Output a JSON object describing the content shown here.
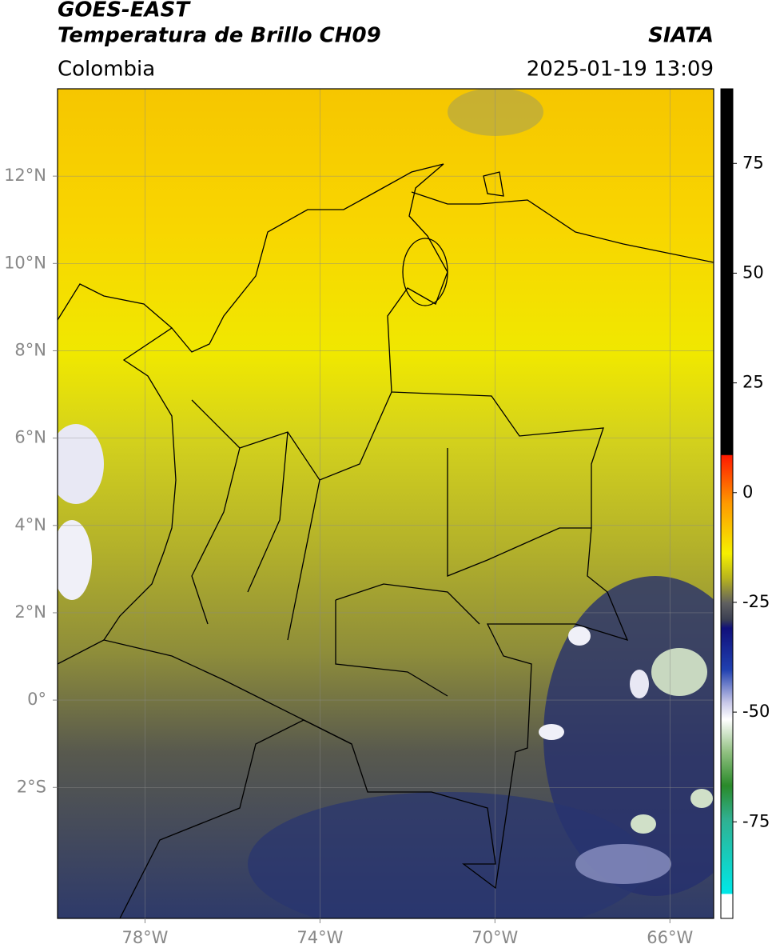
{
  "header": {
    "satellite": "GOES-EAST",
    "product": "Temperatura de Brillo CH09",
    "source": "SIATA",
    "region": "Colombia",
    "datetime": "2025-01-19 13:09"
  },
  "map": {
    "xlim": [
      -80,
      -65
    ],
    "ylim": [
      -5,
      14
    ],
    "grid": true,
    "xticks": [
      {
        "value": -78,
        "label": "78°W"
      },
      {
        "value": -74,
        "label": "74°W"
      },
      {
        "value": -70,
        "label": "70°W"
      },
      {
        "value": -66,
        "label": "66°W"
      }
    ],
    "yticks": [
      {
        "value": 12,
        "label": "12°N"
      },
      {
        "value": 10,
        "label": "10°N"
      },
      {
        "value": 8,
        "label": "8°N"
      },
      {
        "value": 6,
        "label": "6°N"
      },
      {
        "value": 4,
        "label": "4°N"
      },
      {
        "value": 2,
        "label": "2°N"
      },
      {
        "value": 0,
        "label": "0°"
      },
      {
        "value": -2,
        "label": "2°S"
      }
    ]
  },
  "colorbar": {
    "lim": [
      -97,
      92
    ],
    "ticks": [
      75,
      50,
      25,
      0,
      -25,
      -50,
      -75
    ]
  }
}
